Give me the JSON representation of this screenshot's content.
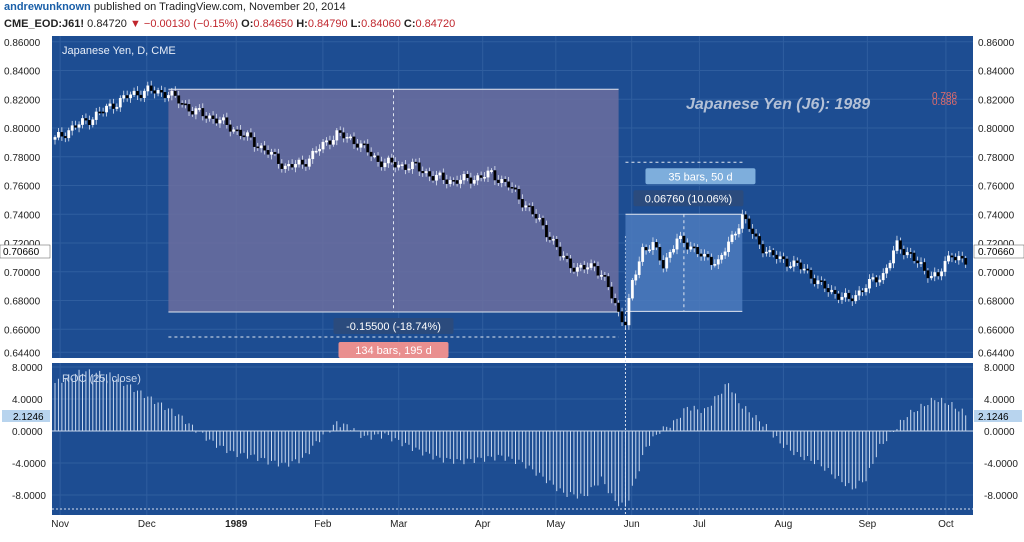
{
  "header": {
    "user": "andrewunknown",
    "published_text": "published on TradingView.com, November 20, 2014",
    "symbol": "CME_EOD:J61!",
    "last": "0.84720",
    "change": "−0.00130 (−0.15%)",
    "o_label": "O:",
    "o_value": "0.84650",
    "h_label": "H:",
    "h_value": "0.84790",
    "l_label": "L:",
    "l_value": "0.84060",
    "c_label": "C:",
    "c_value": "0.84720"
  },
  "main_pane": {
    "legend": "Japanese Yen, D, CME",
    "watermark": "Japanese Yen (J6): 1989",
    "fib_labels": [
      "0.786",
      "0.886"
    ],
    "price_badge": "0.70660",
    "range_box_1": {
      "change_label": "-0.15500 (-18.74%)",
      "bars_label": "134 bars, 195 d"
    },
    "range_box_2": {
      "change_label": "0.06760 (10.06%)",
      "bars_label": "35 bars, 50 d"
    }
  },
  "roc_pane": {
    "legend": "ROC (25, close)",
    "value_badge": "2.1246"
  },
  "colors": {
    "background": "#1d4d92",
    "grid": "#2f5e9f",
    "up_candle": "#ffffff",
    "down_candle": "#000000",
    "box_down": "#6c6e9f",
    "box_up": "#4c7bbd",
    "bars_label_down": "#e98f8f",
    "bars_label_up": "#7eaedc"
  },
  "chart_data": [
    {
      "type": "candlestick",
      "title": "Japanese Yen, D, CME",
      "xlabel": "",
      "ylabel": "",
      "x_ticks": [
        "Nov",
        "Dec",
        "1989",
        "Feb",
        "Mar",
        "Apr",
        "May",
        "Jun",
        "Jul",
        "Aug",
        "Sep",
        "Oct"
      ],
      "y_ticks": [
        "0.86000",
        "0.84000",
        "0.82000",
        "0.80000",
        "0.78000",
        "0.76000",
        "0.74000",
        "0.72000",
        "0.70000",
        "0.68000",
        "0.66000",
        "0.64400"
      ],
      "ylim": [
        0.64,
        0.864
      ],
      "close_path": [
        [
          0,
          0.792
        ],
        [
          5,
          0.8
        ],
        [
          10,
          0.806
        ],
        [
          16,
          0.815
        ],
        [
          22,
          0.823
        ],
        [
          27,
          0.826
        ],
        [
          33,
          0.824
        ],
        [
          40,
          0.812
        ],
        [
          47,
          0.806
        ],
        [
          55,
          0.795
        ],
        [
          62,
          0.783
        ],
        [
          67,
          0.773
        ],
        [
          72,
          0.775
        ],
        [
          77,
          0.786
        ],
        [
          82,
          0.796
        ],
        [
          88,
          0.79
        ],
        [
          94,
          0.777
        ],
        [
          100,
          0.774
        ],
        [
          105,
          0.773
        ],
        [
          110,
          0.766
        ],
        [
          116,
          0.763
        ],
        [
          122,
          0.765
        ],
        [
          127,
          0.768
        ],
        [
          132,
          0.76
        ],
        [
          137,
          0.746
        ],
        [
          142,
          0.732
        ],
        [
          147,
          0.712
        ],
        [
          152,
          0.701
        ],
        [
          157,
          0.705
        ],
        [
          161,
          0.689
        ],
        [
          164,
          0.672
        ],
        [
          166,
          0.664
        ],
        [
          168,
          0.692
        ],
        [
          171,
          0.716
        ],
        [
          174,
          0.718
        ],
        [
          177,
          0.705
        ],
        [
          181,
          0.722
        ],
        [
          185,
          0.718
        ],
        [
          189,
          0.709
        ],
        [
          193,
          0.707
        ],
        [
          197,
          0.723
        ],
        [
          200,
          0.739
        ],
        [
          204,
          0.722
        ],
        [
          208,
          0.712
        ],
        [
          213,
          0.707
        ],
        [
          218,
          0.702
        ],
        [
          223,
          0.69
        ],
        [
          227,
          0.685
        ],
        [
          231,
          0.68
        ],
        [
          236,
          0.69
        ],
        [
          241,
          0.698
        ],
        [
          245,
          0.718
        ],
        [
          249,
          0.712
        ],
        [
          253,
          0.7
        ],
        [
          257,
          0.697
        ],
        [
          261,
          0.713
        ],
        [
          265,
          0.706
        ]
      ],
      "range_boxes": [
        {
          "from_bar": 33,
          "to_bar": 164,
          "top": 0.827,
          "bottom": 0.672,
          "label": "-0.15500 (-18.74%)",
          "bars": "134 bars, 195 d"
        },
        {
          "from_bar": 166,
          "to_bar": 200,
          "top": 0.74,
          "bottom": 0.6724,
          "label": "0.06760 (10.06%)",
          "bars": "35 bars, 50 d"
        }
      ]
    },
    {
      "type": "bar",
      "title": "ROC (25, close)",
      "y_ticks": [
        "8.0000",
        "4.0000",
        "0.0000",
        "-4.0000",
        "-8.0000"
      ],
      "ylim": [
        -10.5,
        8.5
      ],
      "roc_path": [
        [
          0,
          6.0
        ],
        [
          8,
          7.5
        ],
        [
          16,
          7.0
        ],
        [
          24,
          5.0
        ],
        [
          30,
          3.5
        ],
        [
          36,
          2.0
        ],
        [
          40,
          0.5
        ],
        [
          46,
          -1.5
        ],
        [
          52,
          -2.8
        ],
        [
          58,
          -3.2
        ],
        [
          62,
          -3.8
        ],
        [
          67,
          -4.2
        ],
        [
          72,
          -3.5
        ],
        [
          77,
          -1.0
        ],
        [
          82,
          1.0
        ],
        [
          86,
          0.5
        ],
        [
          90,
          -0.8
        ],
        [
          96,
          -0.5
        ],
        [
          101,
          -1.5
        ],
        [
          106,
          -2.5
        ],
        [
          112,
          -3.5
        ],
        [
          118,
          -3.8
        ],
        [
          124,
          -3.5
        ],
        [
          130,
          -3.2
        ],
        [
          136,
          -4.0
        ],
        [
          142,
          -5.8
        ],
        [
          148,
          -7.8
        ],
        [
          154,
          -8.2
        ],
        [
          159,
          -6.0
        ],
        [
          163,
          -8.8
        ],
        [
          166,
          -9.5
        ],
        [
          169,
          -6.0
        ],
        [
          172,
          -2.0
        ],
        [
          176,
          0.0
        ],
        [
          180,
          1.0
        ],
        [
          184,
          3.0
        ],
        [
          189,
          2.5
        ],
        [
          193,
          4.5
        ],
        [
          196,
          6.0
        ],
        [
          199,
          3.5
        ],
        [
          203,
          2.0
        ],
        [
          207,
          0.5
        ],
        [
          211,
          -1.5
        ],
        [
          216,
          -3.0
        ],
        [
          222,
          -4.0
        ],
        [
          228,
          -6.0
        ],
        [
          232,
          -7.2
        ],
        [
          236,
          -6.0
        ],
        [
          240,
          -2.0
        ],
        [
          244,
          0.0
        ],
        [
          248,
          2.0
        ],
        [
          252,
          3.0
        ],
        [
          256,
          4.0
        ],
        [
          260,
          3.5
        ],
        [
          265,
          2.1246
        ]
      ]
    }
  ]
}
